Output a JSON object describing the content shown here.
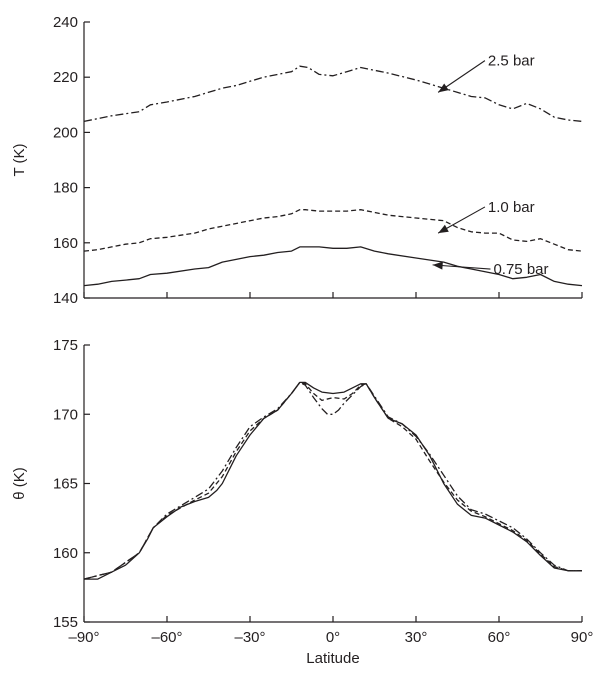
{
  "chart_data": [
    {
      "type": "line",
      "ylabel": "T (K)",
      "xlabel": "",
      "xlim": [
        -90,
        90
      ],
      "ylim": [
        140,
        240
      ],
      "x_ticks": [
        -90,
        -60,
        -30,
        0,
        30,
        60,
        90
      ],
      "y_ticks": [
        140,
        160,
        180,
        200,
        220,
        240
      ],
      "y_tick_labels": [
        "140",
        "160",
        "180",
        "200",
        "220",
        "240"
      ],
      "grid": false,
      "series": [
        {
          "name": "2.5 bar",
          "style": "dash-dot",
          "x": [
            -90,
            -80,
            -70,
            -66,
            -60,
            -50,
            -40,
            -35,
            -30,
            -25,
            -20,
            -15,
            -12,
            -9,
            -5,
            0,
            5,
            10,
            15,
            20,
            30,
            40,
            45,
            50,
            55,
            60,
            65,
            70,
            75,
            80,
            85,
            90
          ],
          "y": [
            204,
            206,
            207.5,
            210,
            211,
            213,
            216,
            217,
            218.5,
            220,
            221,
            222,
            224,
            223.5,
            221,
            220.5,
            222,
            223.5,
            222.5,
            221.5,
            219,
            216,
            214.5,
            213,
            212.5,
            210,
            208.5,
            210.5,
            208.5,
            205.5,
            204.5,
            204
          ]
        },
        {
          "name": "1.0 bar",
          "style": "dashed",
          "x": [
            -90,
            -85,
            -80,
            -75,
            -70,
            -66,
            -60,
            -50,
            -45,
            -40,
            -35,
            -30,
            -25,
            -20,
            -15,
            -12,
            -10,
            -5,
            0,
            5,
            10,
            15,
            20,
            30,
            40,
            45,
            50,
            55,
            60,
            65,
            70,
            75,
            80,
            85,
            90
          ],
          "y": [
            157,
            157.5,
            158.5,
            159.5,
            160,
            161.5,
            162,
            163.5,
            165,
            166,
            167,
            168,
            169,
            169.5,
            170.5,
            172,
            172,
            171.5,
            171.5,
            171.5,
            172,
            171,
            170,
            169,
            168,
            165.5,
            164,
            163.5,
            163.5,
            161,
            160.5,
            161.5,
            159.5,
            157.5,
            157
          ]
        },
        {
          "name": "0.75 bar",
          "style": "solid",
          "x": [
            -90,
            -85,
            -80,
            -75,
            -70,
            -66,
            -60,
            -50,
            -45,
            -40,
            -35,
            -30,
            -25,
            -20,
            -15,
            -12,
            -10,
            -5,
            0,
            5,
            10,
            15,
            20,
            30,
            40,
            45,
            50,
            55,
            60,
            65,
            70,
            75,
            80,
            85,
            90
          ],
          "y": [
            144.5,
            145,
            146,
            146.5,
            147,
            148.5,
            149,
            150.5,
            151,
            153,
            154,
            155,
            155.5,
            156.5,
            157,
            158.5,
            158.5,
            158.5,
            158,
            158,
            158.5,
            157,
            156,
            154.5,
            153,
            151.5,
            150.5,
            149.5,
            148.5,
            147,
            147.5,
            148.5,
            146,
            145,
            144.5
          ]
        }
      ],
      "annotations": [
        {
          "text": "2.5 bar",
          "series": "2.5 bar",
          "target_x": 38,
          "target_y": 214.5,
          "label_x": 56,
          "label_y": 226
        },
        {
          "text": "1.0 bar",
          "series": "1.0 bar",
          "target_x": 38,
          "target_y": 163.5,
          "label_x": 56,
          "label_y": 173
        },
        {
          "text": "0.75 bar",
          "series": "0.75 bar",
          "target_x": 36,
          "target_y": 152,
          "label_x": 58,
          "label_y": 150.5
        }
      ]
    },
    {
      "type": "line",
      "ylabel": "θ (K)",
      "xlabel": "Latitude",
      "xlim": [
        -90,
        90
      ],
      "ylim": [
        155,
        175
      ],
      "x_ticks": [
        -90,
        -60,
        -30,
        0,
        30,
        60,
        90
      ],
      "x_tick_labels": [
        "–90°",
        "–60°",
        "–30°",
        "0°",
        "30°",
        "60°",
        "90°"
      ],
      "y_ticks": [
        155,
        160,
        165,
        170,
        175
      ],
      "y_tick_labels": [
        "155",
        "160",
        "165",
        "170",
        "175"
      ],
      "grid": false,
      "series": [
        {
          "name": "0.75 bar",
          "style": "solid",
          "x": [
            -90,
            -85,
            -80,
            -75,
            -70,
            -67,
            -65,
            -60,
            -55,
            -50,
            -45,
            -42,
            -40,
            -35,
            -30,
            -25,
            -20,
            -15,
            -12,
            -10,
            -7,
            -4,
            0,
            4,
            7,
            10,
            12,
            15,
            20,
            25,
            30,
            35,
            40,
            45,
            50,
            55,
            60,
            65,
            70,
            75,
            80,
            85,
            90
          ],
          "y": [
            158.1,
            158.1,
            158.6,
            159.1,
            160,
            161,
            161.8,
            162.6,
            163.3,
            163.7,
            164,
            164.5,
            165,
            167,
            168.5,
            169.7,
            170.3,
            171.5,
            172.3,
            172.3,
            171.9,
            171.6,
            171.5,
            171.6,
            171.9,
            172.2,
            172.2,
            171.2,
            169.7,
            169.3,
            168.5,
            167,
            165,
            163.5,
            162.7,
            162.5,
            162,
            161.5,
            160.8,
            159.8,
            158.9,
            158.7,
            158.7
          ]
        },
        {
          "name": "1.0 bar",
          "style": "dashed",
          "x": [
            -90,
            -80,
            -70,
            -65,
            -60,
            -50,
            -45,
            -40,
            -35,
            -30,
            -25,
            -20,
            -15,
            -12,
            -10,
            -7,
            -4,
            0,
            4,
            7,
            10,
            12,
            15,
            20,
            25,
            30,
            35,
            40,
            45,
            50,
            55,
            60,
            65,
            70,
            75,
            80,
            85,
            90
          ],
          "y": [
            158.1,
            158.6,
            160,
            161.8,
            162.7,
            163.8,
            164.3,
            165.5,
            167.3,
            168.8,
            169.7,
            170.3,
            171.5,
            172.3,
            172.2,
            171.5,
            171,
            171.2,
            171.1,
            171.5,
            172.1,
            172.2,
            171.2,
            169.7,
            169.1,
            168.2,
            166.6,
            165.1,
            163.8,
            163,
            162.6,
            162.1,
            161.6,
            160.9,
            159.9,
            159,
            158.7,
            158.7
          ]
        },
        {
          "name": "2.5 bar",
          "style": "dash-dot",
          "x": [
            -90,
            -80,
            -70,
            -65,
            -60,
            -50,
            -45,
            -40,
            -35,
            -30,
            -25,
            -20,
            -15,
            -12,
            -10,
            -7,
            -4,
            -2,
            0,
            2,
            4,
            7,
            10,
            12,
            15,
            20,
            25,
            30,
            35,
            40,
            45,
            50,
            55,
            60,
            65,
            70,
            75,
            80,
            85,
            90
          ],
          "y": [
            158.1,
            158.6,
            160,
            161.8,
            162.8,
            164,
            164.6,
            165.9,
            167.6,
            169.1,
            169.8,
            170.4,
            171.5,
            172.3,
            172.1,
            171.2,
            170.4,
            170,
            170,
            170.3,
            170.8,
            171.4,
            172,
            172.2,
            171.3,
            169.8,
            169.3,
            168.4,
            167.1,
            165.6,
            164.1,
            163.1,
            162.8,
            162.3,
            161.8,
            161,
            160,
            159.1,
            158.7,
            158.7
          ]
        }
      ],
      "annotations": []
    }
  ]
}
